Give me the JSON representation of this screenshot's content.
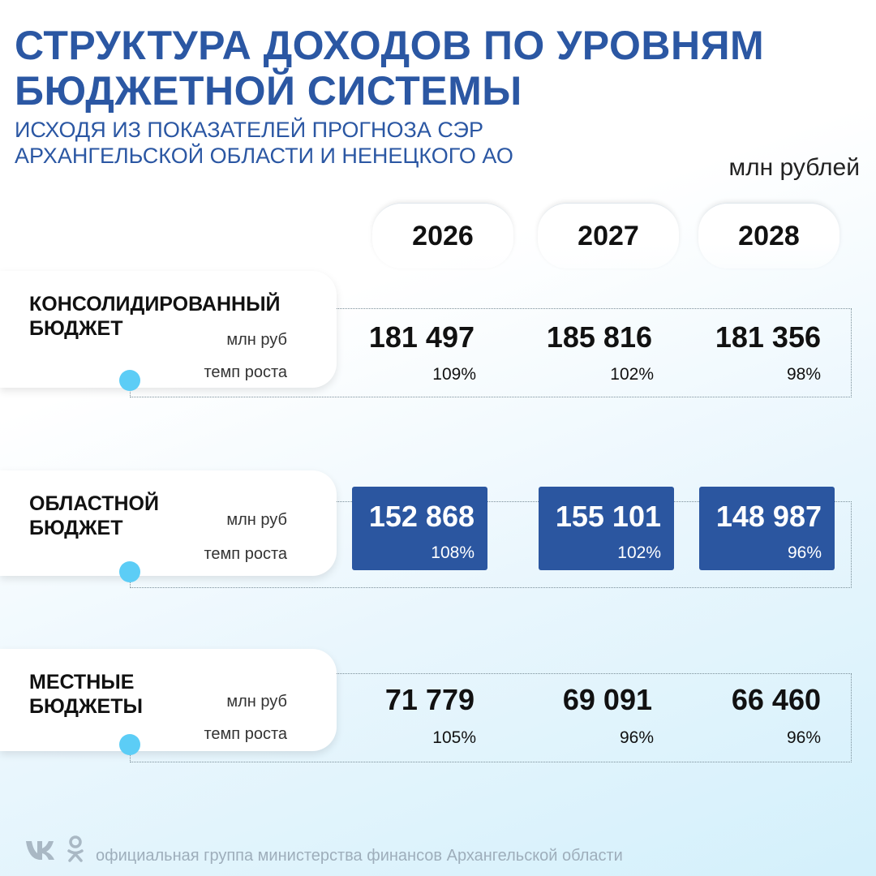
{
  "header": {
    "title_line1": "СТРУКТУРА ДОХОДОВ ПО УРОВНЯМ",
    "title_line2": "БЮДЖЕТНОЙ СИСТЕМЫ",
    "subtitle_line1": "ИСХОДЯ ИЗ ПОКАЗАТЕЛЕЙ ПРОГНОЗА СЭР",
    "subtitle_line2": "АРХАНГЕЛЬСКОЙ ОБЛАСТИ И НЕНЕЦКОГО АО",
    "unit": "млн рублей"
  },
  "years": [
    "2026",
    "2027",
    "2028"
  ],
  "rows": [
    {
      "name_line1": "КОНСОЛИДИРОВАННЫЙ",
      "name_line2": "БЮДЖЕТ",
      "unit_label": "млн руб",
      "rate_label": "темп роста",
      "highlighted": false,
      "values": [
        "181 497",
        "185 816",
        "181 356"
      ],
      "rates": [
        "109%",
        "102%",
        "98%"
      ]
    },
    {
      "name_line1": "ОБЛАСТНОЙ",
      "name_line2": "БЮДЖЕТ",
      "unit_label": "млн руб",
      "rate_label": "темп роста",
      "highlighted": true,
      "values": [
        "152 868",
        "155 101",
        "148 987"
      ],
      "rates": [
        "108%",
        "102%",
        "96%"
      ]
    },
    {
      "name_line1": "МЕСТНЫЕ",
      "name_line2": "БЮДЖЕТЫ",
      "unit_label": "млн руб",
      "rate_label": "темп роста",
      "highlighted": false,
      "values": [
        "71 779",
        "69 091",
        "66 460"
      ],
      "rates": [
        "105%",
        "96%",
        "96%"
      ]
    }
  ],
  "footer": {
    "text": "официальная группа министерства финансов Архангельской области",
    "icons": [
      "vk-logo-icon",
      "ok-logo-icon"
    ]
  },
  "colors": {
    "title": "#2b57a3",
    "highlight_box": "#2b56a0",
    "dot": "#5ccdf6"
  }
}
